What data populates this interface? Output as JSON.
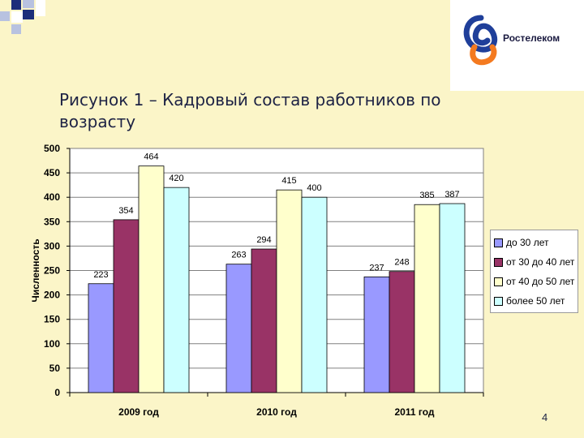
{
  "slide": {
    "title": "Рисунок 1 – Кадровый состав работников по возрасту",
    "page_number": "4"
  },
  "logo": {
    "text": "Ростелеком",
    "icon": "rostelecom-logo-icon",
    "colors": {
      "blue": "#1f3f9a",
      "orange": "#f47a20"
    }
  },
  "chart_data": {
    "type": "bar",
    "categories": [
      "2009 год",
      "2010 год",
      "2011 год"
    ],
    "series": [
      {
        "name": "до 30 лет",
        "values": [
          223,
          263,
          237
        ],
        "color": "#9999ff"
      },
      {
        "name": "от 30 до 40 лет",
        "values": [
          354,
          294,
          248
        ],
        "color": "#993366"
      },
      {
        "name": "от 40 до 50 лет",
        "values": [
          464,
          415,
          385
        ],
        "color": "#ffffcc"
      },
      {
        "name": "более 50 лет",
        "values": [
          420,
          400,
          387
        ],
        "color": "#ccffff"
      }
    ],
    "ylabel": "Численность",
    "ylim": [
      0,
      500
    ],
    "yticks": [
      0,
      50,
      100,
      150,
      200,
      250,
      300,
      350,
      400,
      450,
      500
    ],
    "grid": true,
    "legend_position": "right"
  }
}
